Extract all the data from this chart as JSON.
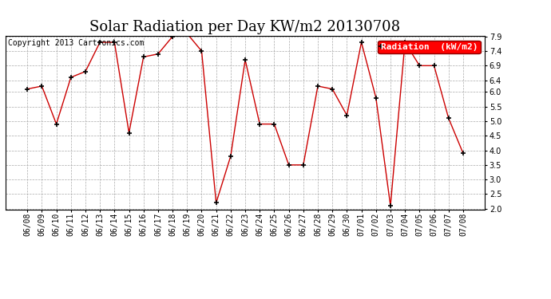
{
  "title": "Solar Radiation per Day KW/m2 20130708",
  "copyright": "Copyright 2013 Cartronics.com",
  "legend_label": "Radiation  (kW/m2)",
  "background_color": "#ffffff",
  "plot_background": "#ffffff",
  "grid_color": "#aaaaaa",
  "line_color": "#cc0000",
  "marker_color": "#000000",
  "dates": [
    "06/08",
    "06/09",
    "06/10",
    "06/11",
    "06/12",
    "06/13",
    "06/14",
    "06/15",
    "06/16",
    "06/17",
    "06/18",
    "06/19",
    "06/20",
    "06/21",
    "06/22",
    "06/23",
    "06/24",
    "06/25",
    "06/26",
    "06/27",
    "06/28",
    "06/29",
    "06/30",
    "07/01",
    "07/02",
    "07/03",
    "07/04",
    "07/05",
    "07/06",
    "07/07",
    "07/08"
  ],
  "values": [
    6.1,
    6.2,
    4.9,
    6.5,
    6.7,
    7.7,
    7.7,
    4.6,
    7.2,
    7.3,
    7.9,
    8.0,
    7.4,
    2.2,
    3.8,
    7.1,
    4.9,
    4.9,
    3.5,
    3.5,
    6.2,
    6.1,
    5.2,
    7.7,
    5.8,
    2.1,
    7.7,
    6.9,
    6.9,
    5.1,
    3.9
  ],
  "ylim_min": 2.0,
  "ylim_max": 7.9,
  "yticks": [
    2.0,
    2.5,
    3.0,
    3.5,
    4.0,
    4.5,
    5.0,
    5.5,
    6.0,
    6.4,
    6.9,
    7.4,
    7.9
  ],
  "title_fontsize": 13,
  "tick_fontsize": 7,
  "legend_fontsize": 8,
  "copyright_fontsize": 7
}
